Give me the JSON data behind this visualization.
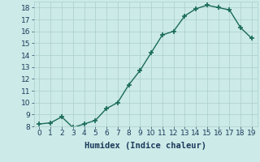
{
  "x": [
    0,
    1,
    2,
    3,
    4,
    5,
    6,
    7,
    8,
    9,
    10,
    11,
    12,
    13,
    14,
    15,
    16,
    17,
    18,
    19
  ],
  "y": [
    8.2,
    8.3,
    8.8,
    7.9,
    8.2,
    8.5,
    9.5,
    10.0,
    11.5,
    12.7,
    14.2,
    15.7,
    16.0,
    17.3,
    17.9,
    18.2,
    18.0,
    17.8,
    16.3,
    15.4
  ],
  "line_color": "#1a6b5a",
  "marker_color": "#1a6b5a",
  "bg_color": "#cceae7",
  "grid_color": "#aacfcb",
  "xlabel": "Humidex (Indice chaleur)",
  "xlabel_color": "#1a3a5c",
  "ylim": [
    8,
    18.5
  ],
  "xlim": [
    -0.5,
    19.5
  ],
  "yticks": [
    8,
    9,
    10,
    11,
    12,
    13,
    14,
    15,
    16,
    17,
    18
  ],
  "xticks": [
    0,
    1,
    2,
    3,
    4,
    5,
    6,
    7,
    8,
    9,
    10,
    11,
    12,
    13,
    14,
    15,
    16,
    17,
    18,
    19
  ],
  "tick_color": "#1a3a5c",
  "tick_fontsize": 6.5,
  "label_fontsize": 7.5,
  "marker_size": 4,
  "line_width": 1.0
}
